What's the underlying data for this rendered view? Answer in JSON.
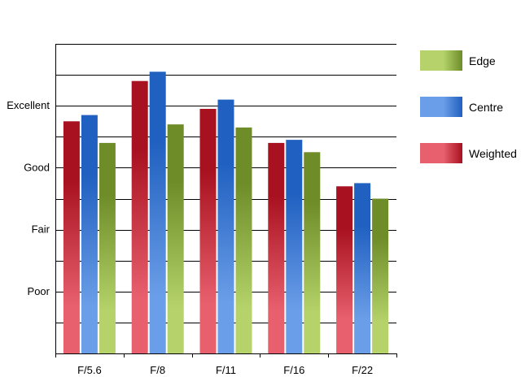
{
  "chart_data": {
    "type": "bar",
    "categories": [
      "F/5.6",
      "F/8",
      "F/11",
      "F/16",
      "F/22"
    ],
    "series": [
      {
        "name": "Weighted",
        "values": [
          3.75,
          4.4,
          3.95,
          3.4,
          2.7
        ],
        "colors": {
          "light": "#e8606e",
          "dark": "#a8111f"
        }
      },
      {
        "name": "Centre",
        "values": [
          3.85,
          4.55,
          4.1,
          3.45,
          2.75
        ],
        "colors": {
          "light": "#6b9ee8",
          "dark": "#2060c0"
        }
      },
      {
        "name": "Edge",
        "values": [
          3.4,
          3.7,
          3.65,
          3.25,
          2.5
        ],
        "colors": {
          "light": "#b5d36a",
          "dark": "#6e8c28"
        }
      }
    ],
    "y_tick_labels": [
      {
        "value": 1,
        "label": "Poor"
      },
      {
        "value": 2,
        "label": "Fair"
      },
      {
        "value": 3,
        "label": "Good"
      },
      {
        "value": 4,
        "label": "Excellent"
      }
    ],
    "ylim": [
      0,
      5
    ],
    "gridlines_every": 0.5,
    "grid": true,
    "legend_placement": "right",
    "legend_order": [
      "Edge",
      "Centre",
      "Weighted"
    ],
    "title": "",
    "xlabel": "",
    "ylabel": ""
  }
}
